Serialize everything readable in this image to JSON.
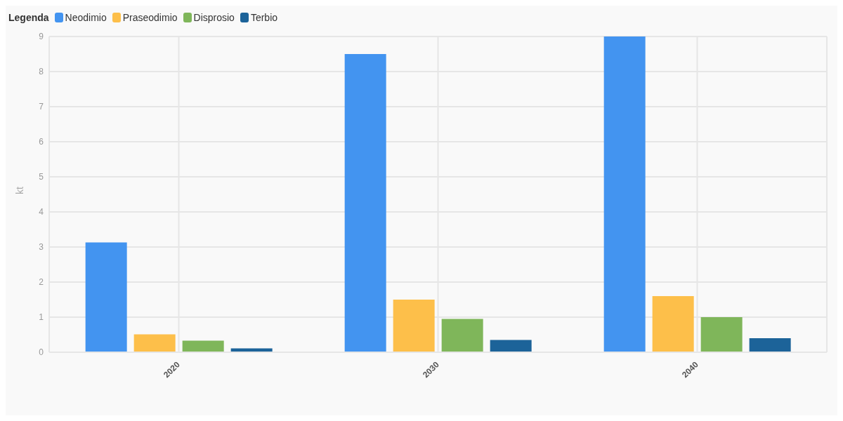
{
  "chart_data": {
    "type": "bar",
    "categories": [
      "2020",
      "2030",
      "2040"
    ],
    "series": [
      {
        "name": "Neodimio",
        "color": "#4394f0",
        "values": [
          3.13,
          8.5,
          9
        ]
      },
      {
        "name": "Praseodimio",
        "color": "#fdbf4a",
        "values": [
          0.51,
          1.5,
          1.6
        ]
      },
      {
        "name": "Disprosio",
        "color": "#7fb65a",
        "values": [
          0.33,
          0.95,
          1
        ]
      },
      {
        "name": "Terbio",
        "color": "#1c6399",
        "values": [
          0.11,
          0.35,
          0.4
        ]
      }
    ],
    "ylabel": "kt",
    "ylim": [
      0,
      9
    ],
    "yticks": [
      0,
      1,
      2,
      3,
      4,
      5,
      6,
      7,
      8,
      9
    ],
    "grid": true,
    "legend": "top left",
    "legend_title": "Legenda"
  }
}
